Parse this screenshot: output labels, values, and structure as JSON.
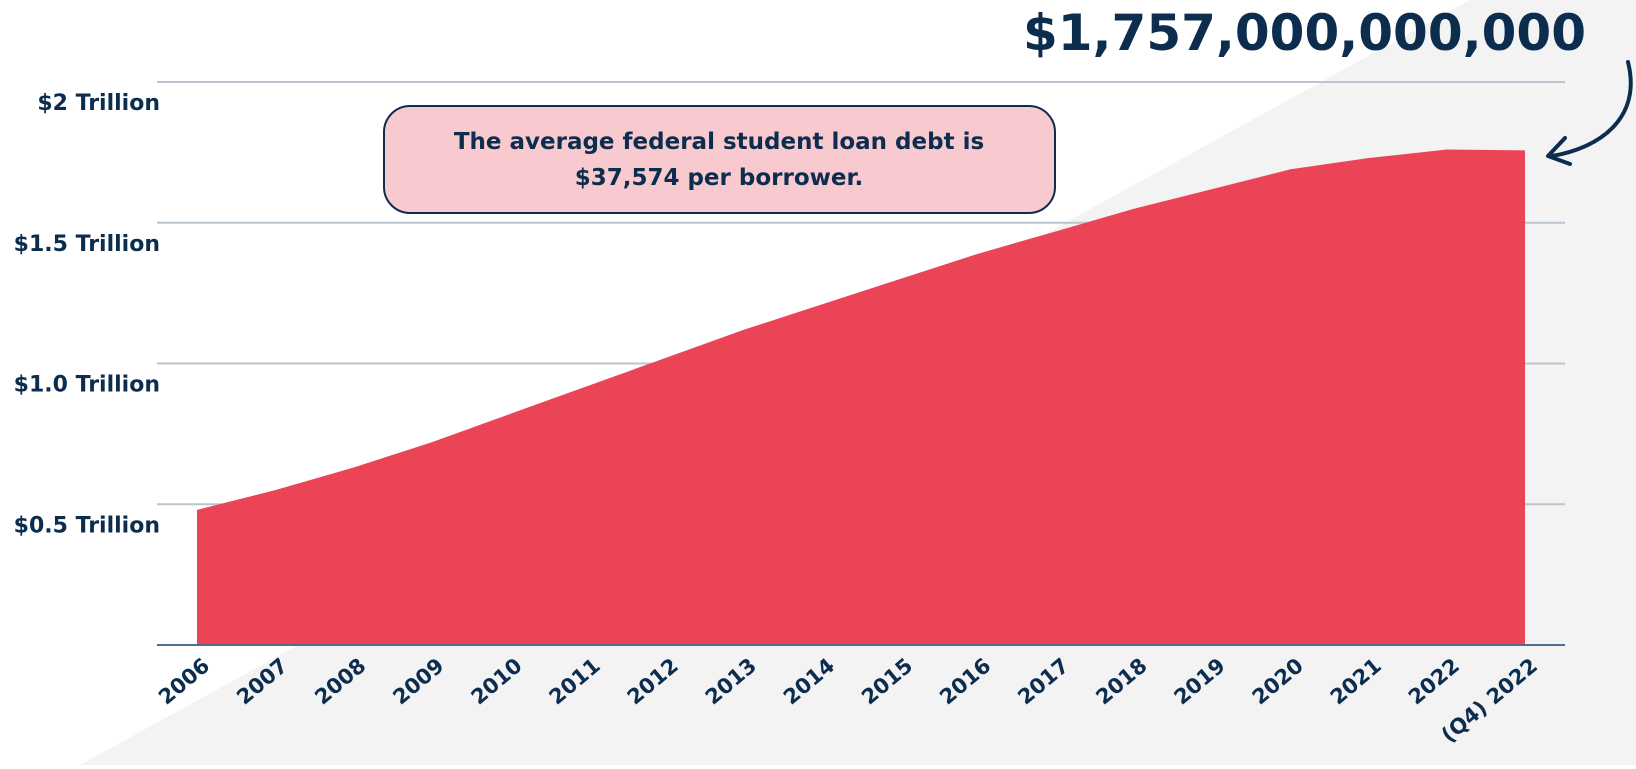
{
  "chart_data": {
    "type": "area",
    "title": "",
    "xlabel": "",
    "ylabel": "",
    "categories": [
      "2006",
      "2007",
      "2008",
      "2009",
      "2010",
      "2011",
      "2012",
      "2013",
      "2014",
      "2015",
      "2016",
      "2017",
      "2018",
      "2019",
      "2020",
      "2021",
      "2022",
      "(Q4) 2022"
    ],
    "values": [
      0.48,
      0.55,
      0.63,
      0.72,
      0.82,
      0.92,
      1.02,
      1.12,
      1.21,
      1.3,
      1.39,
      1.47,
      1.55,
      1.62,
      1.69,
      1.73,
      1.76,
      1.757
    ],
    "ylim": [
      0,
      2
    ],
    "y_ticks": [
      {
        "value": 0.5,
        "label": "$0.5 Trillion"
      },
      {
        "value": 1.0,
        "label": "$1.0 Trillion"
      },
      {
        "value": 1.5,
        "label": "$1.5 Trillion"
      },
      {
        "value": 2.0,
        "label": "$2 Trillion"
      }
    ],
    "grid": true,
    "legend": "none",
    "callout": {
      "line1": "The average federal student loan debt is",
      "line2": "$37,574 per borrower."
    },
    "headline_value": "$1,757,000,000,000",
    "colors": {
      "area": "#EC4457",
      "text": "#0C2D4E",
      "gridline": "#B9C5D1",
      "callout_fill": "#F9C9D0",
      "callout_border": "#0C2D4E",
      "background_wedge": "#F3F3F4"
    }
  }
}
